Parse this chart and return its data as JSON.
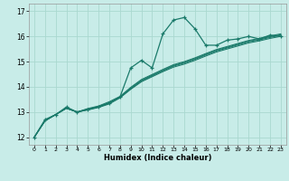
{
  "xlabel": "Humidex (Indice chaleur)",
  "ylabel": "",
  "bg_color": "#c8ece8",
  "line_color": "#1a7a6a",
  "grid_color": "#aad8d0",
  "xlim": [
    -0.5,
    23.5
  ],
  "ylim": [
    11.7,
    17.3
  ],
  "xticks": [
    0,
    1,
    2,
    3,
    4,
    5,
    6,
    7,
    8,
    9,
    10,
    11,
    12,
    13,
    14,
    15,
    16,
    17,
    18,
    19,
    20,
    21,
    22,
    23
  ],
  "yticks": [
    12,
    13,
    14,
    15,
    16,
    17
  ],
  "lines": [
    {
      "x": [
        0,
        1,
        2,
        3,
        4,
        5,
        6,
        7,
        8,
        9,
        10,
        11,
        12,
        13,
        14,
        15,
        16,
        17,
        18,
        19,
        20,
        21,
        22,
        23
      ],
      "y": [
        12.0,
        12.7,
        12.9,
        13.2,
        13.0,
        13.1,
        13.2,
        13.35,
        13.6,
        14.75,
        15.05,
        14.75,
        16.1,
        16.65,
        16.75,
        16.3,
        15.65,
        15.65,
        15.85,
        15.9,
        16.0,
        15.9,
        16.05,
        16.0
      ],
      "marker": "+"
    },
    {
      "x": [
        0,
        1,
        2,
        3,
        4,
        5,
        6,
        7,
        8,
        9,
        10,
        11,
        12,
        13,
        14,
        15,
        16,
        17,
        18,
        19,
        20,
        21,
        22,
        23
      ],
      "y": [
        12.0,
        12.65,
        12.9,
        13.15,
        13.0,
        13.08,
        13.18,
        13.32,
        13.56,
        13.9,
        14.2,
        14.4,
        14.6,
        14.78,
        14.9,
        15.05,
        15.22,
        15.38,
        15.5,
        15.62,
        15.74,
        15.82,
        15.92,
        16.0
      ],
      "marker": null
    },
    {
      "x": [
        0,
        1,
        2,
        3,
        4,
        5,
        6,
        7,
        8,
        9,
        10,
        11,
        12,
        13,
        14,
        15,
        16,
        17,
        18,
        19,
        20,
        21,
        22,
        23
      ],
      "y": [
        12.0,
        12.65,
        12.9,
        13.15,
        13.0,
        13.1,
        13.2,
        13.35,
        13.58,
        13.92,
        14.23,
        14.43,
        14.63,
        14.82,
        14.94,
        15.09,
        15.26,
        15.42,
        15.54,
        15.66,
        15.78,
        15.86,
        15.96,
        16.04
      ],
      "marker": null
    },
    {
      "x": [
        0,
        1,
        2,
        3,
        4,
        5,
        6,
        7,
        8,
        9,
        10,
        11,
        12,
        13,
        14,
        15,
        16,
        17,
        18,
        19,
        20,
        21,
        22,
        23
      ],
      "y": [
        12.0,
        12.65,
        12.9,
        13.15,
        13.0,
        13.12,
        13.22,
        13.38,
        13.6,
        13.95,
        14.26,
        14.46,
        14.66,
        14.85,
        14.97,
        15.12,
        15.29,
        15.45,
        15.57,
        15.69,
        15.81,
        15.89,
        15.99,
        16.07
      ],
      "marker": null
    },
    {
      "x": [
        0,
        1,
        2,
        3,
        4,
        5,
        6,
        7,
        8,
        9,
        10,
        11,
        12,
        13,
        14,
        15,
        16,
        17,
        18,
        19,
        20,
        21,
        22,
        23
      ],
      "y": [
        12.0,
        12.65,
        12.9,
        13.15,
        13.0,
        13.14,
        13.24,
        13.41,
        13.62,
        13.98,
        14.29,
        14.49,
        14.69,
        14.88,
        15.0,
        15.15,
        15.32,
        15.48,
        15.6,
        15.72,
        15.84,
        15.92,
        16.02,
        16.1
      ],
      "marker": null
    }
  ]
}
